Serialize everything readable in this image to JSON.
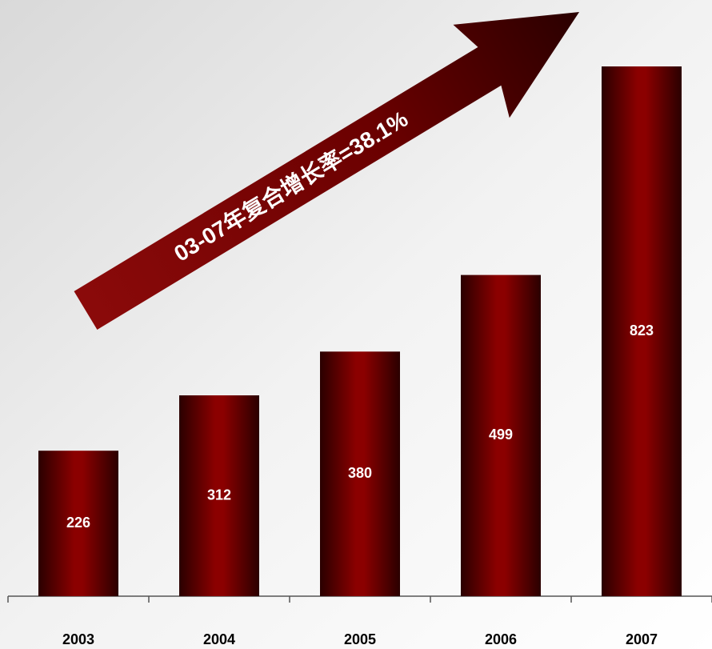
{
  "chart_data": {
    "type": "bar",
    "annotation": "03-07年复合增长率=38.1%",
    "categories": [
      "2003",
      "2004",
      "2005",
      "2006",
      "2007"
    ],
    "values": [
      226,
      312,
      380,
      499,
      823
    ],
    "color": "#8b0000"
  }
}
